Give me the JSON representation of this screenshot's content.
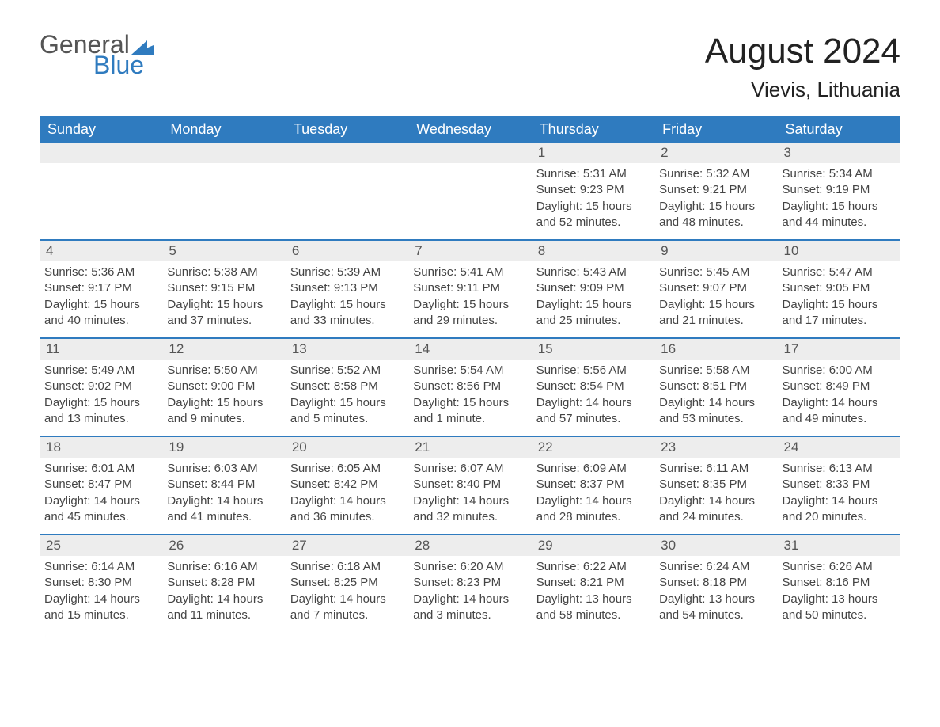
{
  "logo": {
    "text1": "General",
    "text2": "Blue",
    "flag_color": "#2f7bbf"
  },
  "title": "August 2024",
  "location": "Vievis, Lithuania",
  "colors": {
    "header_bg": "#2f7bbf",
    "header_text": "#ffffff",
    "daynum_bg": "#ededed",
    "daynum_text": "#555555",
    "body_text": "#444444",
    "week_border": "#2f7bbf",
    "page_bg": "#ffffff"
  },
  "fonts": {
    "title_size": 44,
    "location_size": 26,
    "dow_size": 18,
    "daynum_size": 17,
    "body_size": 15
  },
  "dow": [
    "Sunday",
    "Monday",
    "Tuesday",
    "Wednesday",
    "Thursday",
    "Friday",
    "Saturday"
  ],
  "weeks": [
    [
      null,
      null,
      null,
      null,
      {
        "n": "1",
        "sunrise": "5:31 AM",
        "sunset": "9:23 PM",
        "daylight": "15 hours and 52 minutes."
      },
      {
        "n": "2",
        "sunrise": "5:32 AM",
        "sunset": "9:21 PM",
        "daylight": "15 hours and 48 minutes."
      },
      {
        "n": "3",
        "sunrise": "5:34 AM",
        "sunset": "9:19 PM",
        "daylight": "15 hours and 44 minutes."
      }
    ],
    [
      {
        "n": "4",
        "sunrise": "5:36 AM",
        "sunset": "9:17 PM",
        "daylight": "15 hours and 40 minutes."
      },
      {
        "n": "5",
        "sunrise": "5:38 AM",
        "sunset": "9:15 PM",
        "daylight": "15 hours and 37 minutes."
      },
      {
        "n": "6",
        "sunrise": "5:39 AM",
        "sunset": "9:13 PM",
        "daylight": "15 hours and 33 minutes."
      },
      {
        "n": "7",
        "sunrise": "5:41 AM",
        "sunset": "9:11 PM",
        "daylight": "15 hours and 29 minutes."
      },
      {
        "n": "8",
        "sunrise": "5:43 AM",
        "sunset": "9:09 PM",
        "daylight": "15 hours and 25 minutes."
      },
      {
        "n": "9",
        "sunrise": "5:45 AM",
        "sunset": "9:07 PM",
        "daylight": "15 hours and 21 minutes."
      },
      {
        "n": "10",
        "sunrise": "5:47 AM",
        "sunset": "9:05 PM",
        "daylight": "15 hours and 17 minutes."
      }
    ],
    [
      {
        "n": "11",
        "sunrise": "5:49 AM",
        "sunset": "9:02 PM",
        "daylight": "15 hours and 13 minutes."
      },
      {
        "n": "12",
        "sunrise": "5:50 AM",
        "sunset": "9:00 PM",
        "daylight": "15 hours and 9 minutes."
      },
      {
        "n": "13",
        "sunrise": "5:52 AM",
        "sunset": "8:58 PM",
        "daylight": "15 hours and 5 minutes."
      },
      {
        "n": "14",
        "sunrise": "5:54 AM",
        "sunset": "8:56 PM",
        "daylight": "15 hours and 1 minute."
      },
      {
        "n": "15",
        "sunrise": "5:56 AM",
        "sunset": "8:54 PM",
        "daylight": "14 hours and 57 minutes."
      },
      {
        "n": "16",
        "sunrise": "5:58 AM",
        "sunset": "8:51 PM",
        "daylight": "14 hours and 53 minutes."
      },
      {
        "n": "17",
        "sunrise": "6:00 AM",
        "sunset": "8:49 PM",
        "daylight": "14 hours and 49 minutes."
      }
    ],
    [
      {
        "n": "18",
        "sunrise": "6:01 AM",
        "sunset": "8:47 PM",
        "daylight": "14 hours and 45 minutes."
      },
      {
        "n": "19",
        "sunrise": "6:03 AM",
        "sunset": "8:44 PM",
        "daylight": "14 hours and 41 minutes."
      },
      {
        "n": "20",
        "sunrise": "6:05 AM",
        "sunset": "8:42 PM",
        "daylight": "14 hours and 36 minutes."
      },
      {
        "n": "21",
        "sunrise": "6:07 AM",
        "sunset": "8:40 PM",
        "daylight": "14 hours and 32 minutes."
      },
      {
        "n": "22",
        "sunrise": "6:09 AM",
        "sunset": "8:37 PM",
        "daylight": "14 hours and 28 minutes."
      },
      {
        "n": "23",
        "sunrise": "6:11 AM",
        "sunset": "8:35 PM",
        "daylight": "14 hours and 24 minutes."
      },
      {
        "n": "24",
        "sunrise": "6:13 AM",
        "sunset": "8:33 PM",
        "daylight": "14 hours and 20 minutes."
      }
    ],
    [
      {
        "n": "25",
        "sunrise": "6:14 AM",
        "sunset": "8:30 PM",
        "daylight": "14 hours and 15 minutes."
      },
      {
        "n": "26",
        "sunrise": "6:16 AM",
        "sunset": "8:28 PM",
        "daylight": "14 hours and 11 minutes."
      },
      {
        "n": "27",
        "sunrise": "6:18 AM",
        "sunset": "8:25 PM",
        "daylight": "14 hours and 7 minutes."
      },
      {
        "n": "28",
        "sunrise": "6:20 AM",
        "sunset": "8:23 PM",
        "daylight": "14 hours and 3 minutes."
      },
      {
        "n": "29",
        "sunrise": "6:22 AM",
        "sunset": "8:21 PM",
        "daylight": "13 hours and 58 minutes."
      },
      {
        "n": "30",
        "sunrise": "6:24 AM",
        "sunset": "8:18 PM",
        "daylight": "13 hours and 54 minutes."
      },
      {
        "n": "31",
        "sunrise": "6:26 AM",
        "sunset": "8:16 PM",
        "daylight": "13 hours and 50 minutes."
      }
    ]
  ],
  "labels": {
    "sunrise": "Sunrise: ",
    "sunset": "Sunset: ",
    "daylight": "Daylight: "
  }
}
